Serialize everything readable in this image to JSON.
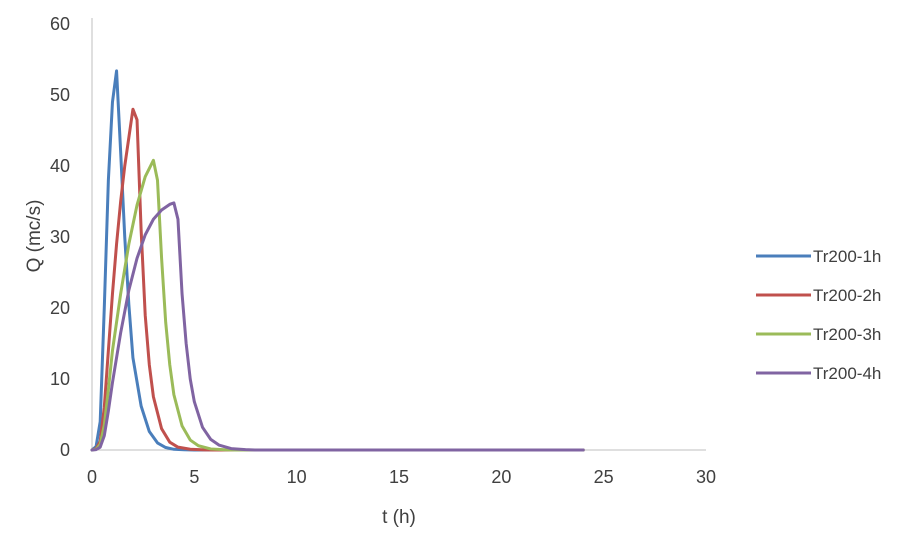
{
  "chart_data": {
    "type": "line",
    "title": "",
    "xlabel": "t (h)",
    "ylabel": "Q (mc/s)",
    "xlim": [
      0,
      30
    ],
    "ylim": [
      0,
      60
    ],
    "xticks": [
      0,
      5,
      10,
      15,
      20,
      25,
      30
    ],
    "yticks": [
      0,
      10,
      20,
      30,
      40,
      50,
      60
    ],
    "grid": false,
    "legend_position": "right",
    "series": [
      {
        "name": "Tr200-1h",
        "color": "#4a7ebb",
        "points": [
          [
            0,
            0
          ],
          [
            0.2,
            0.5
          ],
          [
            0.4,
            4
          ],
          [
            0.6,
            20
          ],
          [
            0.8,
            38
          ],
          [
            1.0,
            49
          ],
          [
            1.2,
            53.4
          ],
          [
            1.4,
            42
          ],
          [
            1.6,
            30
          ],
          [
            1.8,
            20.5
          ],
          [
            2.0,
            13
          ],
          [
            2.4,
            6.2
          ],
          [
            2.8,
            2.6
          ],
          [
            3.2,
            1.0
          ],
          [
            3.6,
            0.35
          ],
          [
            4.0,
            0.1
          ],
          [
            4.5,
            0.03
          ],
          [
            5,
            0
          ],
          [
            24,
            0
          ]
        ]
      },
      {
        "name": "Tr200-2h",
        "color": "#c0504d",
        "points": [
          [
            0,
            0
          ],
          [
            0.2,
            0.2
          ],
          [
            0.4,
            1.2
          ],
          [
            0.6,
            6
          ],
          [
            0.8,
            14
          ],
          [
            1.0,
            22
          ],
          [
            1.2,
            29
          ],
          [
            1.4,
            35
          ],
          [
            1.6,
            40
          ],
          [
            1.8,
            44
          ],
          [
            2.0,
            48
          ],
          [
            2.2,
            46.5
          ],
          [
            2.4,
            31
          ],
          [
            2.6,
            19
          ],
          [
            2.8,
            12
          ],
          [
            3.0,
            7.5
          ],
          [
            3.4,
            3
          ],
          [
            3.8,
            1.1
          ],
          [
            4.2,
            0.4
          ],
          [
            4.8,
            0.1
          ],
          [
            5.5,
            0.02
          ],
          [
            6,
            0
          ],
          [
            24,
            0
          ]
        ]
      },
      {
        "name": "Tr200-3h",
        "color": "#9bbb59",
        "points": [
          [
            0,
            0
          ],
          [
            0.2,
            0.1
          ],
          [
            0.4,
            0.8
          ],
          [
            0.6,
            3.5
          ],
          [
            0.8,
            8.5
          ],
          [
            1.0,
            14
          ],
          [
            1.4,
            22
          ],
          [
            1.8,
            29
          ],
          [
            2.2,
            34.5
          ],
          [
            2.6,
            38.5
          ],
          [
            3.0,
            40.8
          ],
          [
            3.2,
            38
          ],
          [
            3.4,
            27
          ],
          [
            3.6,
            18
          ],
          [
            3.8,
            12
          ],
          [
            4.0,
            7.8
          ],
          [
            4.4,
            3.4
          ],
          [
            4.8,
            1.4
          ],
          [
            5.2,
            0.6
          ],
          [
            5.8,
            0.15
          ],
          [
            6.5,
            0.03
          ],
          [
            7,
            0
          ],
          [
            24,
            0
          ]
        ]
      },
      {
        "name": "Tr200-4h",
        "color": "#8064a2",
        "points": [
          [
            0,
            0
          ],
          [
            0.2,
            0.05
          ],
          [
            0.4,
            0.4
          ],
          [
            0.6,
            2
          ],
          [
            0.8,
            5.5
          ],
          [
            1.0,
            9.5
          ],
          [
            1.4,
            16.5
          ],
          [
            1.8,
            22.5
          ],
          [
            2.2,
            27
          ],
          [
            2.6,
            30.3
          ],
          [
            3.0,
            32.5
          ],
          [
            3.4,
            33.8
          ],
          [
            3.8,
            34.6
          ],
          [
            4.0,
            34.8
          ],
          [
            4.2,
            32.5
          ],
          [
            4.4,
            22
          ],
          [
            4.6,
            15
          ],
          [
            4.8,
            10
          ],
          [
            5.0,
            6.8
          ],
          [
            5.4,
            3.2
          ],
          [
            5.8,
            1.5
          ],
          [
            6.2,
            0.7
          ],
          [
            6.8,
            0.2
          ],
          [
            7.5,
            0.05
          ],
          [
            8,
            0
          ],
          [
            24,
            0
          ]
        ]
      }
    ]
  }
}
